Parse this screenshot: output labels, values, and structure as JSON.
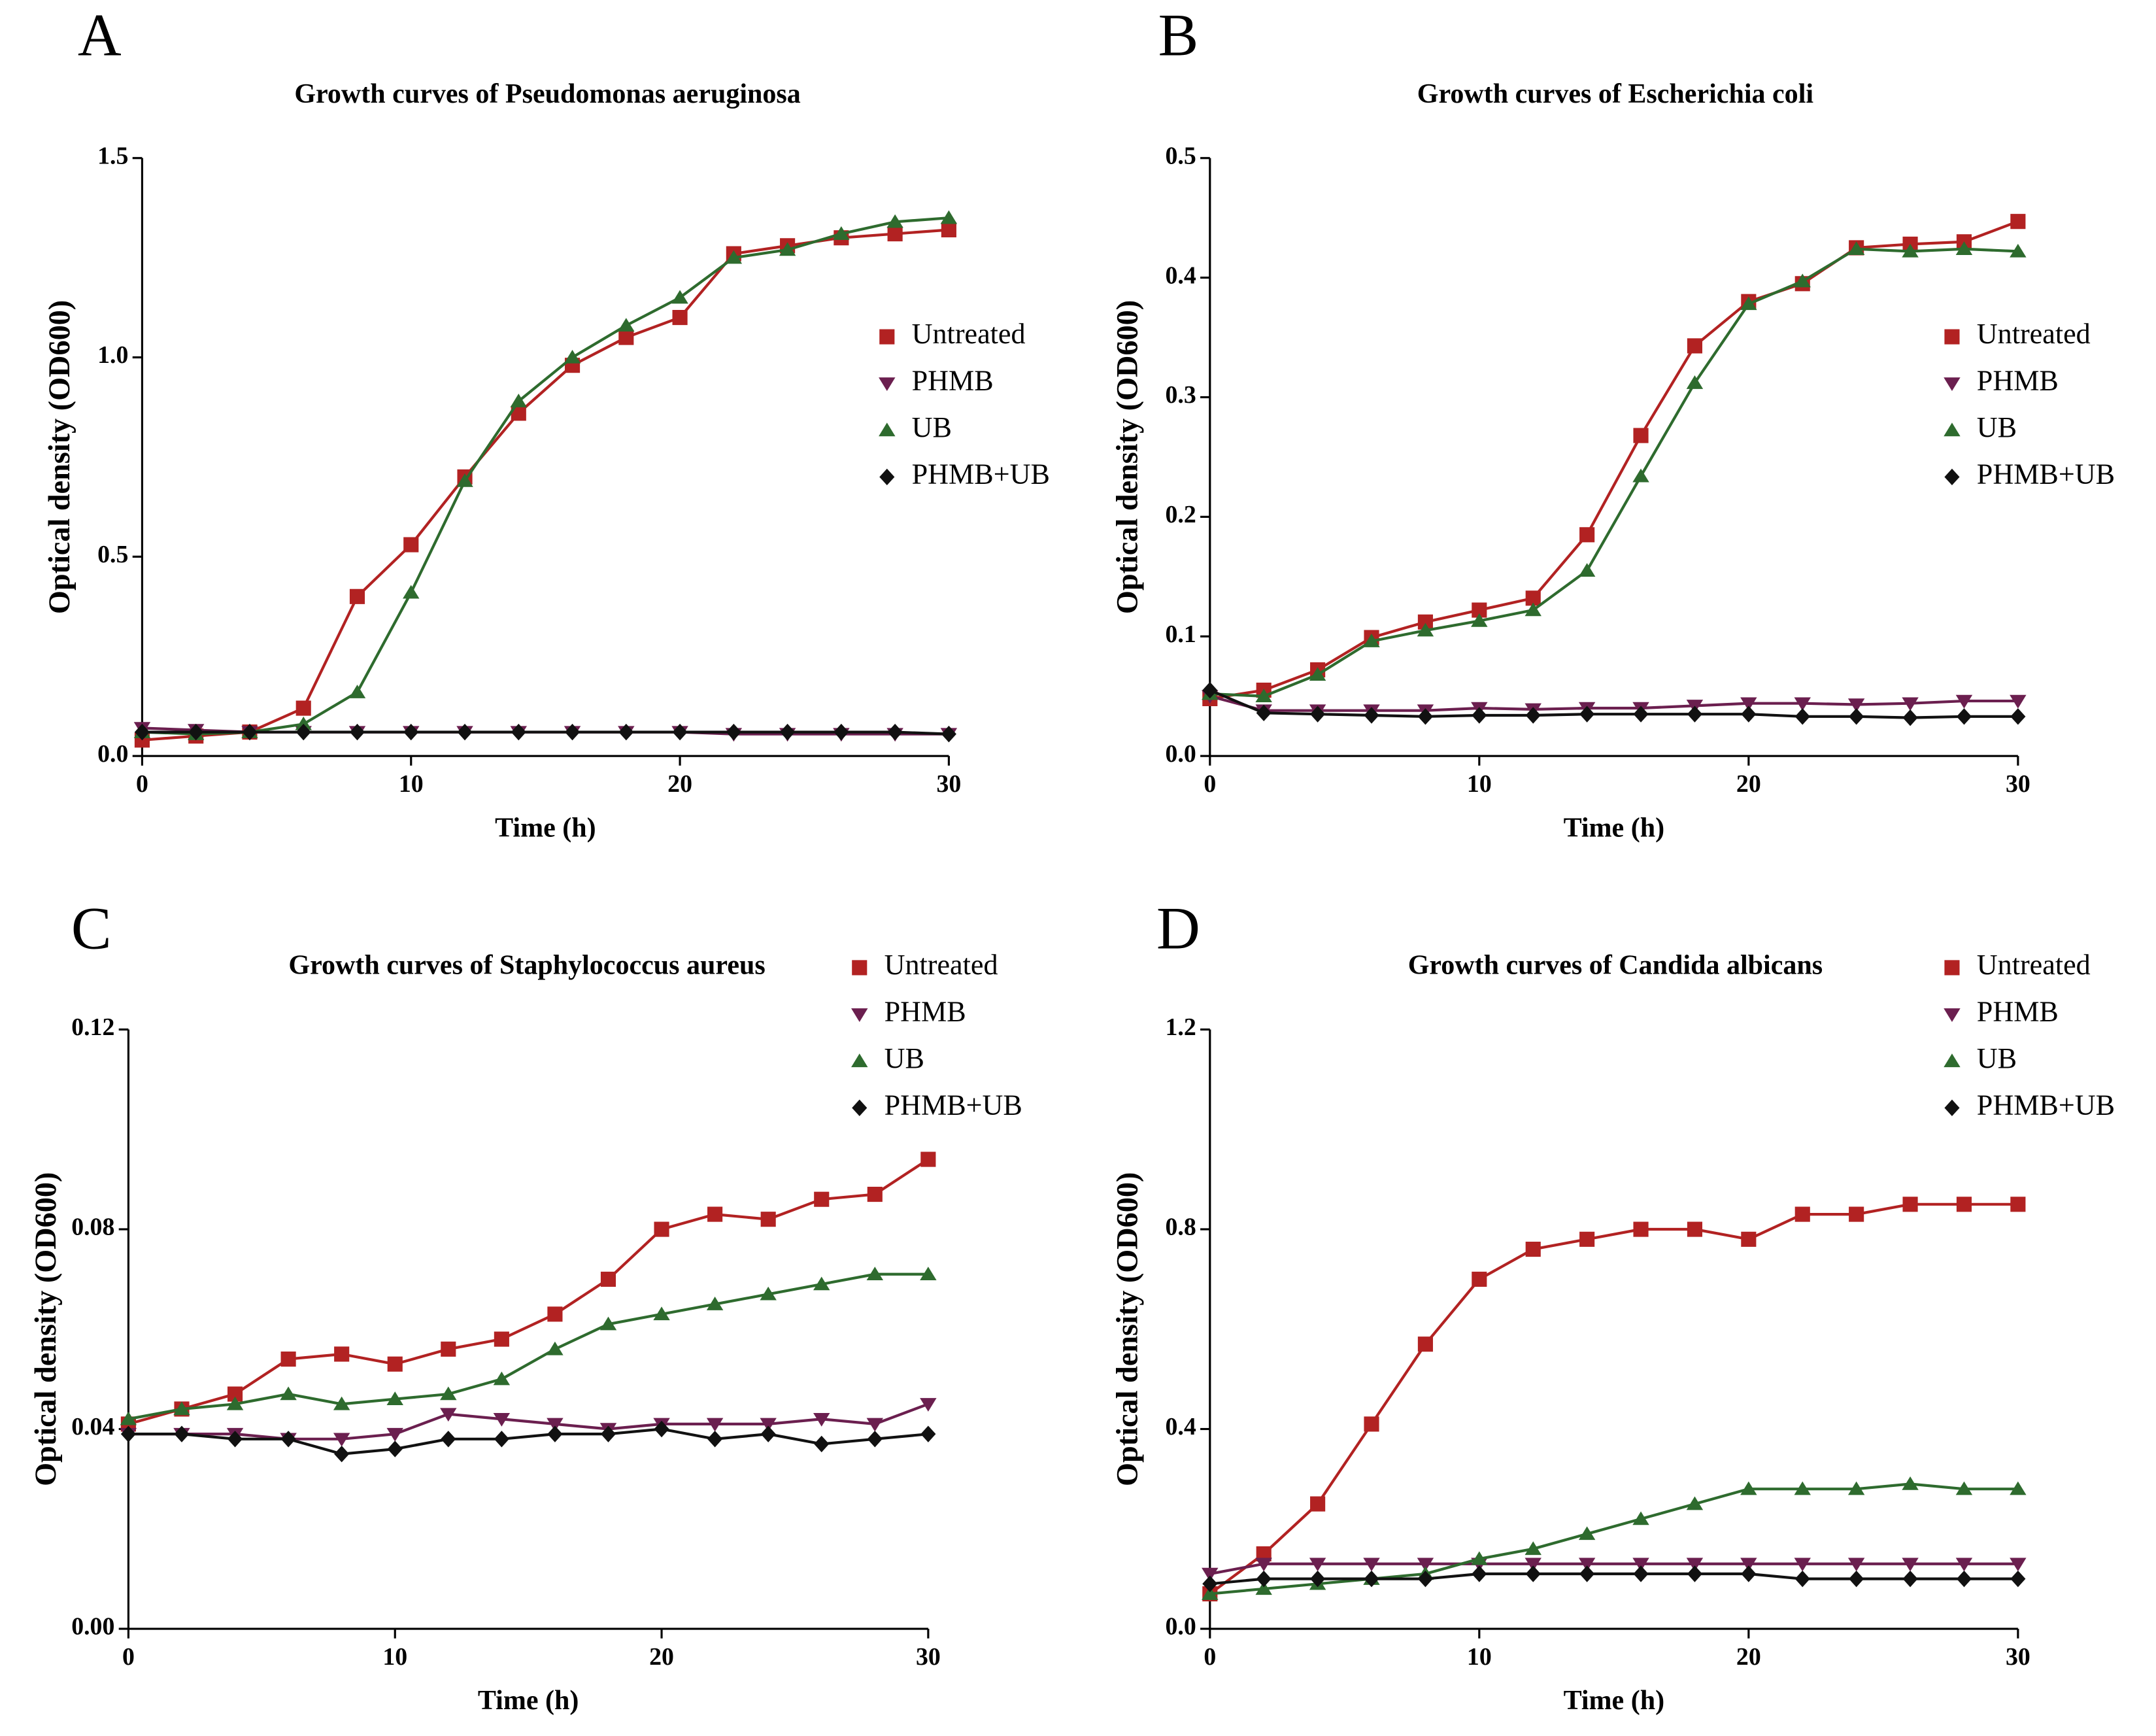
{
  "chart_data": [
    {
      "type": "line",
      "panel_label": "A",
      "title": "Growth curves of Pseudomonas aeruginosa",
      "xlabel": "Time (h)",
      "ylabel": "Optical density (OD600)",
      "x": [
        0,
        2,
        4,
        6,
        8,
        10,
        12,
        14,
        16,
        18,
        20,
        22,
        24,
        26,
        28,
        30
      ],
      "xlim": [
        0,
        30
      ],
      "xticks": [
        0,
        10,
        20,
        30
      ],
      "ylim": [
        0,
        1.5
      ],
      "yticks": [
        {
          "value": 0,
          "label": "0.0"
        },
        {
          "value": 0.5,
          "label": "0.5"
        },
        {
          "value": 1,
          "label": "1.0"
        },
        {
          "value": 1.5,
          "label": "1.5"
        }
      ],
      "series": [
        {
          "name": "Untreated",
          "color": "#b22222",
          "marker": "square",
          "values": [
            0.04,
            0.05,
            0.06,
            0.12,
            0.4,
            0.53,
            0.7,
            0.86,
            0.98,
            1.05,
            1.1,
            1.26,
            1.28,
            1.3,
            1.31,
            1.32
          ]
        },
        {
          "name": "PHMB",
          "color": "#6b1f4f",
          "marker": "down",
          "values": [
            0.07,
            0.065,
            0.06,
            0.06,
            0.06,
            0.06,
            0.06,
            0.06,
            0.06,
            0.06,
            0.06,
            0.055,
            0.055,
            0.055,
            0.055,
            0.055
          ]
        },
        {
          "name": "UB",
          "color": "#2e6b2e",
          "marker": "up",
          "values": [
            0.06,
            0.055,
            0.06,
            0.08,
            0.16,
            0.41,
            0.69,
            0.89,
            1.0,
            1.08,
            1.15,
            1.25,
            1.27,
            1.31,
            1.34,
            1.35
          ]
        },
        {
          "name": "PHMB+UB",
          "color": "#111111",
          "marker": "diamond",
          "values": [
            0.06,
            0.06,
            0.06,
            0.06,
            0.06,
            0.06,
            0.06,
            0.06,
            0.06,
            0.06,
            0.06,
            0.06,
            0.06,
            0.06,
            0.06,
            0.055
          ]
        }
      ]
    },
    {
      "type": "line",
      "panel_label": "B",
      "title": "Growth curves of Escherichia coli",
      "xlabel": "Time (h)",
      "ylabel": "Optical density (OD600)",
      "x": [
        0,
        2,
        4,
        6,
        8,
        10,
        12,
        14,
        16,
        18,
        20,
        22,
        24,
        26,
        28,
        30
      ],
      "xlim": [
        0,
        30
      ],
      "xticks": [
        0,
        10,
        20,
        30
      ],
      "ylim": [
        0,
        0.5
      ],
      "yticks": [
        {
          "value": 0,
          "label": "0.0"
        },
        0.1,
        0.2,
        0.3,
        0.4,
        0.5
      ],
      "series": [
        {
          "name": "Untreated",
          "color": "#b22222",
          "marker": "square",
          "values": [
            0.048,
            0.055,
            0.072,
            0.099,
            0.112,
            0.122,
            0.132,
            0.185,
            0.268,
            0.343,
            0.38,
            0.395,
            0.425,
            0.428,
            0.43,
            0.447
          ]
        },
        {
          "name": "PHMB",
          "color": "#6b1f4f",
          "marker": "down",
          "values": [
            0.05,
            0.038,
            0.038,
            0.038,
            0.038,
            0.04,
            0.039,
            0.04,
            0.04,
            0.042,
            0.044,
            0.044,
            0.043,
            0.044,
            0.046,
            0.046
          ]
        },
        {
          "name": "UB",
          "color": "#2e6b2e",
          "marker": "up",
          "values": [
            0.052,
            0.05,
            0.068,
            0.096,
            0.105,
            0.113,
            0.122,
            0.155,
            0.234,
            0.312,
            0.378,
            0.397,
            0.424,
            0.422,
            0.424,
            0.422
          ]
        },
        {
          "name": "PHMB+UB",
          "color": "#111111",
          "marker": "diamond",
          "values": [
            0.055,
            0.036,
            0.035,
            0.034,
            0.033,
            0.034,
            0.034,
            0.035,
            0.035,
            0.035,
            0.035,
            0.033,
            0.033,
            0.032,
            0.033,
            0.033
          ]
        }
      ]
    },
    {
      "type": "line",
      "panel_label": "C",
      "title": "Growth curves of Staphylococcus aureus",
      "xlabel": "Time (h)",
      "ylabel": "Optical density (OD600)",
      "x": [
        0,
        2,
        4,
        6,
        8,
        10,
        12,
        14,
        16,
        18,
        20,
        22,
        24,
        26,
        28,
        30
      ],
      "xlim": [
        0,
        30
      ],
      "xticks": [
        0,
        10,
        20,
        30
      ],
      "ylim": [
        0,
        0.12
      ],
      "yticks": [
        {
          "value": 0,
          "label": "0.00"
        },
        0.04,
        0.08,
        0.12
      ],
      "series": [
        {
          "name": "Untreated",
          "color": "#b22222",
          "marker": "square",
          "values": [
            0.041,
            0.044,
            0.047,
            0.054,
            0.055,
            0.053,
            0.056,
            0.058,
            0.063,
            0.07,
            0.08,
            0.083,
            0.082,
            0.086,
            0.087,
            0.094
          ]
        },
        {
          "name": "PHMB",
          "color": "#6b1f4f",
          "marker": "down",
          "values": [
            0.039,
            0.039,
            0.039,
            0.038,
            0.038,
            0.039,
            0.043,
            0.042,
            0.041,
            0.04,
            0.041,
            0.041,
            0.041,
            0.042,
            0.041,
            0.045
          ]
        },
        {
          "name": "UB",
          "color": "#2e6b2e",
          "marker": "up",
          "values": [
            0.042,
            0.044,
            0.045,
            0.047,
            0.045,
            0.046,
            0.047,
            0.05,
            0.056,
            0.061,
            0.063,
            0.065,
            0.067,
            0.069,
            0.071,
            0.071
          ]
        },
        {
          "name": "PHMB+UB",
          "color": "#111111",
          "marker": "diamond",
          "values": [
            0.039,
            0.039,
            0.038,
            0.038,
            0.035,
            0.036,
            0.038,
            0.038,
            0.039,
            0.039,
            0.04,
            0.038,
            0.039,
            0.037,
            0.038,
            0.039
          ]
        }
      ]
    },
    {
      "type": "line",
      "panel_label": "D",
      "title": "Growth curves of Candida albicans",
      "xlabel": "Time (h)",
      "ylabel": "Optical density (OD600)",
      "x": [
        0,
        2,
        4,
        6,
        8,
        10,
        12,
        14,
        16,
        18,
        20,
        22,
        24,
        26,
        28,
        30
      ],
      "xlim": [
        0,
        30
      ],
      "xticks": [
        0,
        10,
        20,
        30
      ],
      "ylim": [
        0,
        1.2
      ],
      "yticks": [
        {
          "value": 0,
          "label": "0.0"
        },
        0.4,
        0.8,
        1.2
      ],
      "series": [
        {
          "name": "Untreated",
          "color": "#b22222",
          "marker": "square",
          "values": [
            0.07,
            0.15,
            0.25,
            0.41,
            0.57,
            0.7,
            0.76,
            0.78,
            0.8,
            0.8,
            0.78,
            0.83,
            0.83,
            0.85,
            0.85,
            0.85
          ]
        },
        {
          "name": "PHMB",
          "color": "#6b1f4f",
          "marker": "down",
          "values": [
            0.11,
            0.13,
            0.13,
            0.13,
            0.13,
            0.13,
            0.13,
            0.13,
            0.13,
            0.13,
            0.13,
            0.13,
            0.13,
            0.13,
            0.13,
            0.13
          ]
        },
        {
          "name": "UB",
          "color": "#2e6b2e",
          "marker": "up",
          "values": [
            0.07,
            0.08,
            0.09,
            0.1,
            0.11,
            0.14,
            0.16,
            0.19,
            0.22,
            0.25,
            0.28,
            0.28,
            0.28,
            0.29,
            0.28,
            0.28
          ]
        },
        {
          "name": "PHMB+UB",
          "color": "#111111",
          "marker": "diamond",
          "values": [
            0.09,
            0.1,
            0.1,
            0.1,
            0.1,
            0.11,
            0.11,
            0.11,
            0.11,
            0.11,
            0.11,
            0.1,
            0.1,
            0.1,
            0.1,
            0.1
          ]
        }
      ]
    }
  ]
}
